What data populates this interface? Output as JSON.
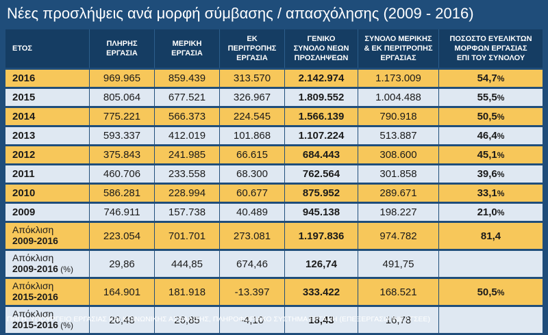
{
  "title": "Νέες προσλήψεις ανά μορφή σύμβασης / απασχόλησης (2009 - 2016)",
  "headers": [
    [
      "ΕΤΟΣ"
    ],
    [
      "ΠΛΗΡΗΣ",
      "ΕΡΓΑΣΙΑ"
    ],
    [
      "ΜΕΡΙΚΗ",
      "ΕΡΓΑΣΙΑ"
    ],
    [
      "ΕΚ",
      "ΠΕΡΙΤΡΟΠΗΣ",
      "ΕΡΓΑΣΙΑ"
    ],
    [
      "ΓΕΝΙΚΟ",
      "ΣΥΝΟΛΟ ΝΕΩΝ",
      "ΠΡΟΣΛΗΨΕΩΝ"
    ],
    [
      "ΣΥΝΟΛΟ ΜΕΡΙΚΗΣ",
      "& ΕΚ ΠΕΡΙΤΡΟΠΗΣ",
      "ΕΡΓΑΣΙΑΣ"
    ],
    [
      "ΠΟΣΟΣΤΟ ΕΥΕΛΙΚΤΩΝ",
      "ΜΟΡΦΩΝ ΕΡΓΑΣΙΑΣ",
      "ΕΠΙ ΤΟΥ ΣΥΝΟΛΟΥ"
    ]
  ],
  "rows": [
    {
      "year": "2016",
      "full": "969.965",
      "part": "859.439",
      "rot": "313.570",
      "total": "2.142.974",
      "flex": "1.173.009",
      "pct": "54,7",
      "unit": "%"
    },
    {
      "year": "2015",
      "full": "805.064",
      "part": "677.521",
      "rot": "326.967",
      "total": "1.809.552",
      "flex": "1.004.488",
      "pct": "55,5",
      "unit": "%"
    },
    {
      "year": "2014",
      "full": "775.221",
      "part": "566.373",
      "rot": "224.545",
      "total": "1.566.139",
      "flex": "790.918",
      "pct": "50,5",
      "unit": "%"
    },
    {
      "year": "2013",
      "full": "593.337",
      "part": "412.019",
      "rot": "101.868",
      "total": "1.107.224",
      "flex": "513.887",
      "pct": "46,4",
      "unit": "%"
    },
    {
      "year": "2012",
      "full": "375.843",
      "part": "241.985",
      "rot": "66.615",
      "total": "684.443",
      "flex": "308.600",
      "pct": "45,1",
      "unit": "%"
    },
    {
      "year": "2011",
      "full": "460.706",
      "part": "233.558",
      "rot": "68.300",
      "total": "762.564",
      "flex": "301.858",
      "pct": "39,6",
      "unit": "%"
    },
    {
      "year": "2010",
      "full": "586.281",
      "part": "228.994",
      "rot": "60.677",
      "total": "875.952",
      "flex": "289.671",
      "pct": "33,1",
      "unit": "%"
    },
    {
      "year": "2009",
      "full": "746.911",
      "part": "157.738",
      "rot": "40.489",
      "total": "945.138",
      "flex": "198.227",
      "pct": "21,0",
      "unit": "%"
    }
  ],
  "deviation_rows": [
    {
      "label": "Απόκλιση",
      "range": "2009-2016",
      "suffix": "",
      "full": "223.054",
      "part": "701.701",
      "rot": "273.081",
      "total": "1.197.836",
      "flex": "974.782",
      "pct": "81,4",
      "unit": ""
    },
    {
      "label": "Απόκλιση",
      "range": "2009-2016",
      "suffix": " (%)",
      "full": "29,86",
      "part": "444,85",
      "rot": "674,46",
      "total": "126,74",
      "flex": "491,75",
      "pct": "",
      "unit": ""
    },
    {
      "label": "Απόκλιση",
      "range": "2015-2016",
      "suffix": "",
      "full": "164.901",
      "part": "181.918",
      "rot": "-13.397",
      "total": "333.422",
      "flex": "168.521",
      "pct": "50,5",
      "unit": "%"
    },
    {
      "label": "Απόκλιση",
      "range": "2015-2016",
      "suffix": " (%)",
      "full": "20,48",
      "part": "26,85",
      "rot": "-4,10",
      "total": "18,43",
      "flex": "16,78",
      "pct": "",
      "unit": ""
    }
  ],
  "source": "ΠΗΓΗ: ΥΠΟΥΡΓΕΙΟ ΕΡΓΑΣΙΑΣ ΚΑΙ ΚΟΙΝΩΝΙΚΗΣ ΑΣΦΑΛΙΣΗΣ, ΠΛΗΡΟΦΟΡΙΑΚΟ ΣΥΣΤΗΜΑ ΕΡΓΑΝΗ (ΕΠΕΞΕΡΓΑΣΙΑ ΙΝΕ / ΓΣΕΕ)",
  "colors": {
    "background": "#1f4d7a",
    "header": "#153d63",
    "row_yellow": "#f7c75a",
    "row_blue": "#dfe8f2"
  }
}
